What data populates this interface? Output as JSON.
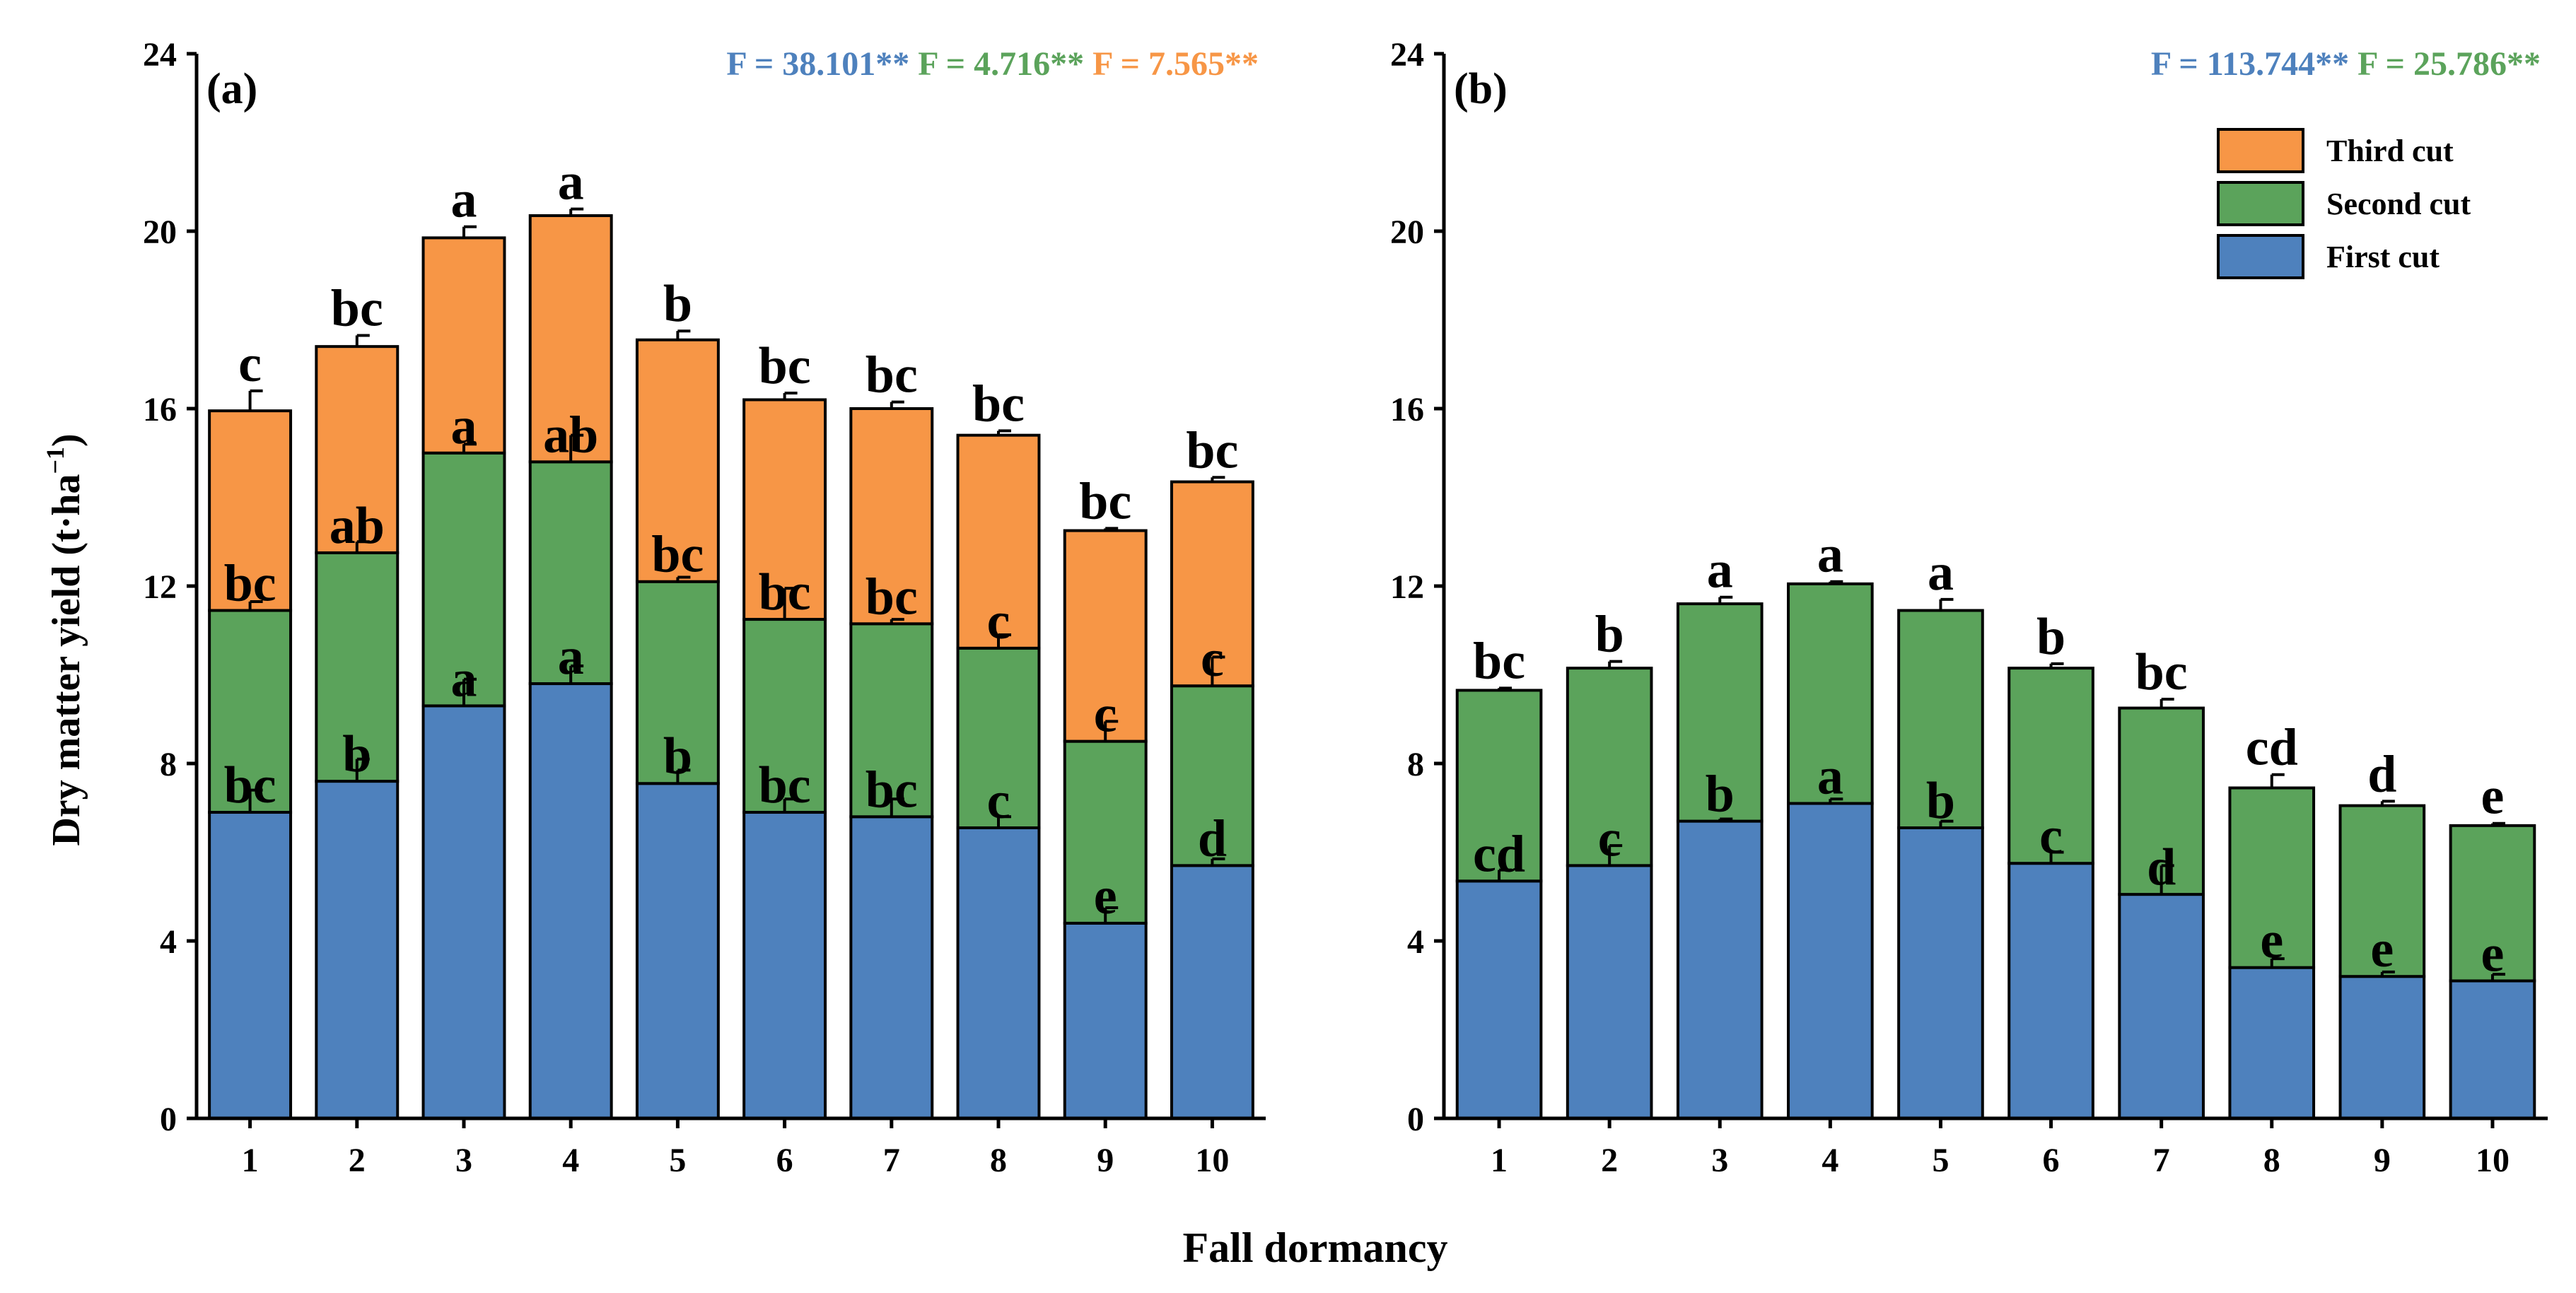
{
  "figure": {
    "ylabel_main": "Dry matter yield (t·ha",
    "ylabel_sup": "−1",
    "ylabel_close": ")",
    "xlabel": "Fall dormancy"
  },
  "legend": {
    "third": "Third cut",
    "second": "Second cut",
    "first": "First cut"
  },
  "colors": {
    "first": "#4e81bd",
    "second": "#5ba35b",
    "third": "#f79646",
    "f_first": "#4e81bd",
    "f_second": "#5ba35b",
    "f_third": "#f79646"
  },
  "chart_data": [
    {
      "type": "bar",
      "stacked": true,
      "panel": "(a)",
      "xlabel": "Fall dormancy",
      "ylabel": "Dry matter yield (t·ha−1)",
      "ylim": [
        0,
        24
      ],
      "yticks": [
        "0",
        "4",
        "8",
        "12",
        "16",
        "20",
        "24"
      ],
      "categories": [
        "1",
        "2",
        "3",
        "4",
        "5",
        "6",
        "7",
        "8",
        "9",
        "10"
      ],
      "f_stats": [
        {
          "text": "F = 38.101**",
          "series": "First cut"
        },
        {
          "text": "F = 4.716**",
          "series": "Second cut"
        },
        {
          "text": "F = 7.565**",
          "series": "Third cut"
        }
      ],
      "series": [
        {
          "name": "First cut",
          "values": [
            6.9,
            7.6,
            9.3,
            9.8,
            7.55,
            6.9,
            6.8,
            6.55,
            4.4,
            5.7
          ],
          "errors": [
            0.5,
            0.5,
            0.6,
            0.4,
            0.3,
            0.3,
            0.4,
            0.25,
            0.35,
            0.15
          ],
          "letters": [
            "bc",
            "b",
            "a",
            "a",
            "b",
            "bc",
            "bc",
            "c",
            "e",
            "d"
          ]
        },
        {
          "name": "Second cut",
          "values": [
            4.55,
            5.15,
            5.7,
            5.0,
            4.55,
            4.35,
            4.35,
            4.05,
            4.1,
            4.05
          ],
          "errors": [
            0.2,
            0.25,
            0.2,
            0.6,
            0.1,
            0.7,
            0.1,
            0.3,
            0.45,
            0.65
          ],
          "letters": [
            "bc",
            "ab",
            "a",
            "ab",
            "bc",
            "bc",
            "bc",
            "c",
            "c",
            "c"
          ]
        },
        {
          "name": "Third cut",
          "values": [
            4.5,
            4.65,
            4.85,
            5.55,
            5.45,
            4.95,
            4.85,
            4.8,
            4.75,
            4.6
          ],
          "errors": [
            0.45,
            0.25,
            0.25,
            0.15,
            0.2,
            0.15,
            0.15,
            0.1,
            0.05,
            0.1
          ],
          "letters": [
            "c",
            "bc",
            "a",
            "a",
            "b",
            "bc",
            "bc",
            "bc",
            "bc",
            "bc"
          ]
        }
      ]
    },
    {
      "type": "bar",
      "stacked": true,
      "panel": "(b)",
      "xlabel": "Fall dormancy",
      "ylabel": "Dry matter yield (t·ha−1)",
      "ylim": [
        0,
        24
      ],
      "yticks": [
        "0",
        "4",
        "8",
        "12",
        "16",
        "20",
        "24"
      ],
      "categories": [
        "1",
        "2",
        "3",
        "4",
        "5",
        "6",
        "7",
        "8",
        "9",
        "10"
      ],
      "f_stats": [
        {
          "text": "F = 113.744**",
          "series": "First cut"
        },
        {
          "text": "F = 25.786**",
          "series": "Second cut"
        }
      ],
      "series": [
        {
          "name": "First cut",
          "values": [
            5.35,
            5.7,
            6.7,
            7.1,
            6.55,
            5.75,
            5.05,
            3.4,
            3.2,
            3.1
          ],
          "errors": [
            0.25,
            0.45,
            0.05,
            0.1,
            0.15,
            0.25,
            0.65,
            0.2,
            0.1,
            0.15
          ],
          "letters": [
            "cd",
            "c",
            "b",
            "a",
            "b",
            "c",
            "d",
            "e",
            "e",
            "e"
          ]
        },
        {
          "name": "Second cut",
          "values": [
            4.3,
            4.45,
            4.9,
            4.95,
            4.9,
            4.4,
            4.2,
            4.05,
            3.85,
            3.5
          ],
          "errors": [
            0.05,
            0.15,
            0.15,
            0.05,
            0.25,
            0.1,
            0.2,
            0.3,
            0.1,
            0.05
          ],
          "letters": [
            "bc",
            "b",
            "a",
            "a",
            "a",
            "b",
            "bc",
            "cd",
            "d",
            "e"
          ]
        }
      ]
    }
  ]
}
